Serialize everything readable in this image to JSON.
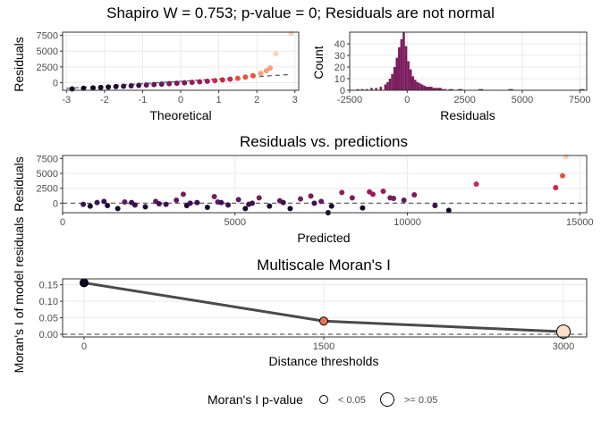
{
  "main_title": "Shapiro W = 0.753; p-value = 0; Residuals are not normal",
  "chart_data": [
    {
      "id": "qq",
      "type": "scatter",
      "subtype": "qq-plot",
      "title": "",
      "xlabel": "Theoretical",
      "ylabel": "Residuals",
      "xlim": [
        -3.1,
        3.1
      ],
      "ylim": [
        -1200,
        8000
      ],
      "xticks": [
        "-3",
        "-2",
        "-1",
        "0",
        "1",
        "2",
        "3"
      ],
      "xtick_values": [
        -3,
        -2,
        -1,
        0,
        1,
        2,
        3
      ],
      "yticks": [
        "0",
        "2500",
        "5000",
        "7500"
      ],
      "ytick_values": [
        0,
        2500,
        5000,
        7500
      ],
      "reference_line": [
        [
          -3,
          -900
        ],
        [
          2.9,
          1300
        ]
      ],
      "colors": [
        "#0d0887",
        "#1b0c2e",
        "#3b1150",
        "#5f1a5f",
        "#7a1c5e",
        "#9b1d5a",
        "#c42a4c",
        "#e8533a",
        "#f6a17a",
        "#fcd3b5"
      ],
      "points": [
        [
          -2.85,
          -980
        ],
        [
          -2.55,
          -880
        ],
        [
          -2.3,
          -820
        ],
        [
          -2.1,
          -760
        ],
        [
          -1.9,
          -690
        ],
        [
          -1.7,
          -620
        ],
        [
          -1.5,
          -560
        ],
        [
          -1.3,
          -500
        ],
        [
          -1.1,
          -430
        ],
        [
          -0.9,
          -370
        ],
        [
          -0.7,
          -300
        ],
        [
          -0.5,
          -230
        ],
        [
          -0.3,
          -160
        ],
        [
          -0.1,
          -90
        ],
        [
          0.1,
          -20
        ],
        [
          0.3,
          60
        ],
        [
          0.5,
          140
        ],
        [
          0.7,
          230
        ],
        [
          0.9,
          330
        ],
        [
          1.1,
          440
        ],
        [
          1.3,
          560
        ],
        [
          1.5,
          700
        ],
        [
          1.7,
          880
        ],
        [
          1.9,
          1100
        ],
        [
          2.1,
          1450
        ],
        [
          2.25,
          1900
        ],
        [
          2.35,
          2300
        ],
        [
          2.5,
          4600
        ],
        [
          2.9,
          7800
        ]
      ]
    },
    {
      "id": "hist",
      "type": "bar",
      "subtype": "histogram",
      "title": "",
      "xlabel": "Residuals",
      "ylabel": "Count",
      "xlim": [
        -2500,
        7800
      ],
      "ylim": [
        0,
        50
      ],
      "xticks": [
        "-2500",
        "0",
        "2500",
        "5000",
        "7500"
      ],
      "xtick_values": [
        -2500,
        0,
        2500,
        5000,
        7500
      ],
      "yticks": [
        "0",
        "10",
        "20",
        "30",
        "40"
      ],
      "ytick_values": [
        0,
        10,
        20,
        30,
        40
      ],
      "bar_color": "#7a1c5e",
      "bins": [
        [
          -2150,
          1
        ],
        [
          -1950,
          1
        ],
        [
          -1750,
          1
        ],
        [
          -1550,
          2
        ],
        [
          -1350,
          2
        ],
        [
          -1150,
          3
        ],
        [
          -950,
          5
        ],
        [
          -850,
          7
        ],
        [
          -750,
          10
        ],
        [
          -650,
          14
        ],
        [
          -550,
          20
        ],
        [
          -450,
          28
        ],
        [
          -350,
          37
        ],
        [
          -250,
          44
        ],
        [
          -150,
          50
        ],
        [
          -50,
          38
        ],
        [
          50,
          25
        ],
        [
          150,
          18
        ],
        [
          250,
          12
        ],
        [
          350,
          9
        ],
        [
          450,
          7
        ],
        [
          550,
          6
        ],
        [
          650,
          5
        ],
        [
          750,
          4
        ],
        [
          850,
          3
        ],
        [
          1000,
          3
        ],
        [
          1200,
          2
        ],
        [
          1400,
          2
        ],
        [
          1600,
          1
        ],
        [
          1900,
          1
        ],
        [
          2300,
          1
        ],
        [
          3200,
          1
        ],
        [
          4500,
          1
        ],
        [
          7600,
          1
        ]
      ]
    },
    {
      "id": "resid_pred",
      "type": "scatter",
      "title": "Residuals vs. predictions",
      "xlabel": "Predicted",
      "ylabel": "Residuals",
      "xlim": [
        0,
        15200
      ],
      "ylim": [
        -1600,
        8000
      ],
      "xticks": [
        "0",
        "5000",
        "10000",
        "15000"
      ],
      "xtick_values": [
        0,
        5000,
        10000,
        15000
      ],
      "yticks": [
        "0",
        "2500",
        "5000",
        "7500"
      ],
      "ytick_values": [
        0,
        2500,
        5000,
        7500
      ],
      "reference_y": 0,
      "points": [
        [
          600,
          -200,
          2
        ],
        [
          800,
          -500,
          1
        ],
        [
          1000,
          100,
          2
        ],
        [
          1300,
          -400,
          1
        ],
        [
          1600,
          -900,
          0
        ],
        [
          1800,
          200,
          3
        ],
        [
          2100,
          -300,
          2
        ],
        [
          2400,
          -600,
          1
        ],
        [
          2700,
          300,
          3
        ],
        [
          3000,
          -200,
          2
        ],
        [
          3300,
          500,
          3
        ],
        [
          3600,
          -400,
          1
        ],
        [
          3900,
          100,
          2
        ],
        [
          4200,
          -700,
          1
        ],
        [
          4500,
          200,
          3
        ],
        [
          4800,
          -300,
          2
        ],
        [
          5100,
          600,
          3
        ],
        [
          5400,
          -200,
          2
        ],
        [
          5700,
          900,
          4
        ],
        [
          6000,
          -500,
          1
        ],
        [
          6300,
          400,
          3
        ],
        [
          6600,
          -900,
          0
        ],
        [
          6900,
          700,
          4
        ],
        [
          7200,
          1200,
          4
        ],
        [
          7500,
          300,
          3
        ],
        [
          7800,
          -500,
          1
        ],
        [
          8100,
          1800,
          5
        ],
        [
          8400,
          900,
          4
        ],
        [
          8700,
          -800,
          0
        ],
        [
          9000,
          1500,
          5
        ],
        [
          9300,
          2000,
          5
        ],
        [
          9600,
          800,
          4
        ],
        [
          9900,
          500,
          3
        ],
        [
          10200,
          1400,
          4
        ],
        [
          10800,
          -400,
          2
        ],
        [
          11200,
          -1200,
          0
        ],
        [
          12000,
          3200,
          6
        ],
        [
          14300,
          2600,
          6
        ],
        [
          14500,
          4600,
          7
        ],
        [
          14600,
          7800,
          9
        ],
        [
          3500,
          1500,
          4
        ],
        [
          4400,
          1100,
          4
        ],
        [
          5300,
          -900,
          0
        ],
        [
          7700,
          -1600,
          0
        ],
        [
          8900,
          1900,
          5
        ],
        [
          9500,
          900,
          4
        ],
        [
          1200,
          300,
          2
        ],
        [
          2000,
          100,
          2
        ],
        [
          2800,
          -100,
          2
        ],
        [
          3700,
          0,
          2
        ],
        [
          4600,
          100,
          2
        ],
        [
          5500,
          0,
          2
        ],
        [
          6400,
          100,
          2
        ],
        [
          7300,
          0,
          2
        ]
      ]
    },
    {
      "id": "moran",
      "type": "line",
      "title": "Multiscale Moran's I",
      "xlabel": "Distance thresholds",
      "ylabel": "Moran's I of model residuals",
      "categories": [
        "0",
        "1500",
        "3000"
      ],
      "values": [
        0.156,
        0.04,
        0.008
      ],
      "ylim": [
        -0.008,
        0.168
      ],
      "yticks": [
        "0.00",
        "0.05",
        "0.10",
        "0.15"
      ],
      "ytick_values": [
        0,
        0.05,
        0.1,
        0.15
      ],
      "reference_y": 0,
      "point_pvalue_class": [
        "< 0.05",
        "< 0.05",
        ">= 0.05"
      ],
      "point_colors": [
        "#0b0724",
        "#e8735a",
        "#fbe0c8"
      ],
      "line_color": "#4a4a4a"
    }
  ],
  "legend": {
    "title": "Moran's I p-value",
    "items": [
      {
        "label": "< 0.05"
      },
      {
        "label": ">= 0.05"
      }
    ]
  }
}
